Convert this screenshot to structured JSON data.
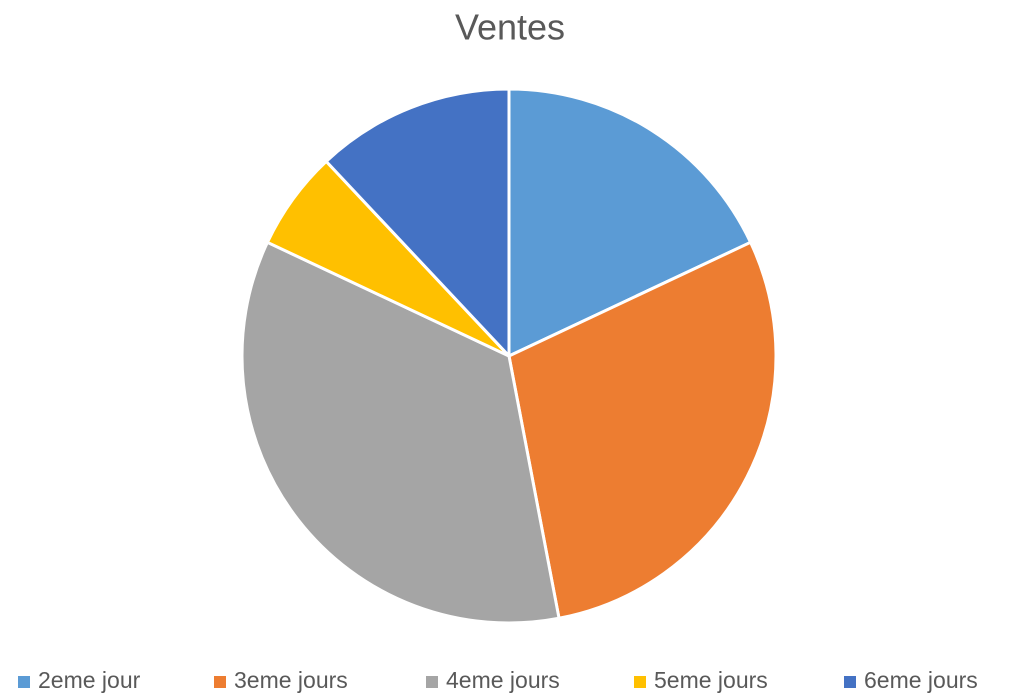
{
  "chart_data": {
    "type": "pie",
    "title": "Ventes",
    "categories": [
      "2eme jour",
      "3eme jours",
      "4eme jours",
      "5eme jours",
      "6eme jours"
    ],
    "values": [
      18,
      29,
      35,
      6,
      12
    ],
    "colors": [
      "#5b9bd5",
      "#ed7d31",
      "#a5a5a5",
      "#ffc000",
      "#4472c4"
    ],
    "legend": "bottom"
  }
}
